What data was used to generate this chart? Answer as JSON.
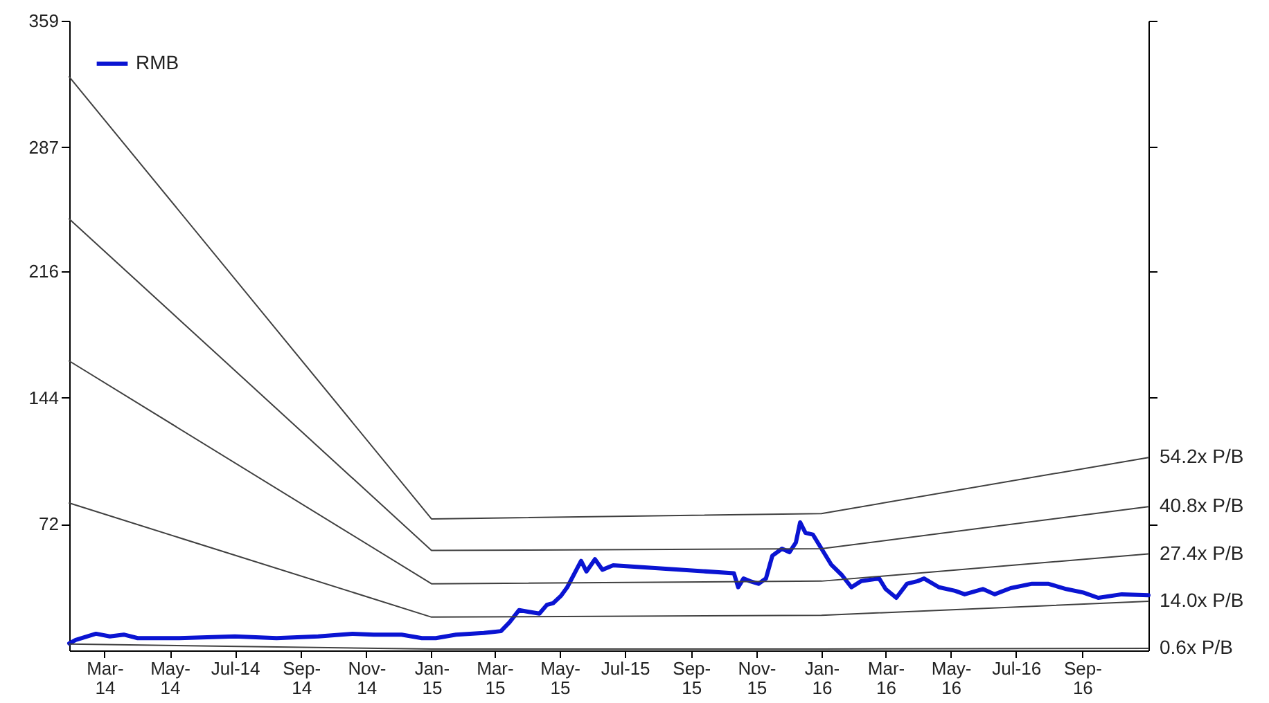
{
  "chart_data": {
    "type": "line",
    "xlim": [
      "2014-01-27",
      "2016-11-02"
    ],
    "ylim": [
      0,
      359
    ],
    "yticks": [
      72,
      144,
      216,
      287,
      359
    ],
    "xticks": [
      {
        "value": "2014-03-01",
        "label": "Mar-\n14"
      },
      {
        "value": "2014-05-01",
        "label": "May-\n14"
      },
      {
        "value": "2014-07-01",
        "label": "Jul-14"
      },
      {
        "value": "2014-09-01",
        "label": "Sep-\n14"
      },
      {
        "value": "2014-11-01",
        "label": "Nov-\n14"
      },
      {
        "value": "2015-01-01",
        "label": "Jan-\n15"
      },
      {
        "value": "2015-03-01",
        "label": "Mar-\n15"
      },
      {
        "value": "2015-05-01",
        "label": "May-\n15"
      },
      {
        "value": "2015-07-01",
        "label": "Jul-15"
      },
      {
        "value": "2015-09-01",
        "label": "Sep-\n15"
      },
      {
        "value": "2015-11-01",
        "label": "Nov-\n15"
      },
      {
        "value": "2016-01-01",
        "label": "Jan-\n16"
      },
      {
        "value": "2016-03-01",
        "label": "Mar-\n16"
      },
      {
        "value": "2016-05-01",
        "label": "May-\n16"
      },
      {
        "value": "2016-07-01",
        "label": "Jul-16"
      },
      {
        "value": "2016-09-01",
        "label": "Sep-\n16"
      }
    ],
    "grid": false,
    "legend": "top left",
    "marker": "none",
    "line_style": "solid",
    "x": [
      "2014-01-27",
      "2014-02-02",
      "2014-02-21",
      "2014-03-06",
      "2014-03-19",
      "2014-04-01",
      "2014-05-10",
      "2014-07-01",
      "2014-08-09",
      "2014-09-17",
      "2014-10-19",
      "2014-11-08",
      "2014-12-04",
      "2014-12-23",
      "2015-01-05",
      "2015-01-24",
      "2015-02-19",
      "2015-03-07",
      "2015-03-15",
      "2015-03-24",
      "2015-04-02",
      "2015-04-12",
      "2015-04-19",
      "2015-04-25",
      "2015-05-02",
      "2015-05-08",
      "2015-05-21",
      "2015-05-26",
      "2015-06-03",
      "2015-06-10",
      "2015-06-20",
      "2015-10-11",
      "2015-10-15",
      "2015-10-20",
      "2015-10-26",
      "2015-11-03",
      "2015-11-10",
      "2015-11-16",
      "2015-11-25",
      "2015-12-02",
      "2015-12-08",
      "2015-12-12",
      "2015-12-17",
      "2015-12-24",
      "2016-01-02",
      "2016-01-10",
      "2016-01-20",
      "2016-01-29",
      "2016-02-07",
      "2016-02-24",
      "2016-03-01",
      "2016-03-11",
      "2016-03-21",
      "2016-03-31",
      "2016-04-06",
      "2016-04-20",
      "2016-05-05",
      "2016-05-14",
      "2016-05-31",
      "2016-06-11",
      "2016-06-26",
      "2016-07-16",
      "2016-07-31",
      "2016-08-17",
      "2016-09-02",
      "2016-09-16",
      "2016-10-08",
      "2016-11-02"
    ],
    "series": [
      {
        "name": "RMB",
        "color": "#0a14d2",
        "values": [
          4,
          6,
          9.5,
          8,
          9,
          7,
          7,
          8,
          7,
          8,
          9.5,
          9,
          9,
          7,
          7,
          9,
          10,
          11,
          16,
          23,
          22,
          21,
          26,
          27,
          31,
          36,
          51,
          45,
          52,
          46,
          48.5,
          44,
          36,
          41,
          39.5,
          38,
          41,
          54,
          58,
          56,
          61.5,
          73,
          67,
          66,
          57,
          49,
          43,
          36,
          39.5,
          41,
          35,
          30,
          38,
          39.5,
          41,
          36,
          34,
          32,
          35,
          32,
          35.5,
          38,
          38,
          35,
          33,
          30,
          32,
          31.5
        ]
      },
      {
        "name": "54.2x P/B",
        "color": "#404040",
        "x": [
          "2014-01-27",
          "2015-01-01",
          "2016-01-01",
          "2016-11-02"
        ],
        "values": [
          327,
          75,
          78,
          110
        ]
      },
      {
        "name": "40.8x P/B",
        "color": "#404040",
        "x": [
          "2014-01-27",
          "2015-01-01",
          "2016-01-01",
          "2016-11-02"
        ],
        "values": [
          246,
          57,
          58,
          82
        ]
      },
      {
        "name": "27.4x P/B",
        "color": "#404040",
        "x": [
          "2014-01-27",
          "2015-01-01",
          "2016-01-01",
          "2016-11-02"
        ],
        "values": [
          165,
          38,
          39.5,
          55
        ]
      },
      {
        "name": "14.0x P/B",
        "color": "#404040",
        "x": [
          "2014-01-27",
          "2015-01-01",
          "2016-01-01",
          "2016-11-02"
        ],
        "values": [
          84,
          19,
          20,
          28
        ]
      },
      {
        "name": "0.6x P/B",
        "color": "#404040",
        "x": [
          "2014-01-27",
          "2015-01-01",
          "2016-01-01",
          "2016-11-02"
        ],
        "values": [
          3.6,
          0.8,
          0.8,
          1.2
        ]
      }
    ]
  }
}
